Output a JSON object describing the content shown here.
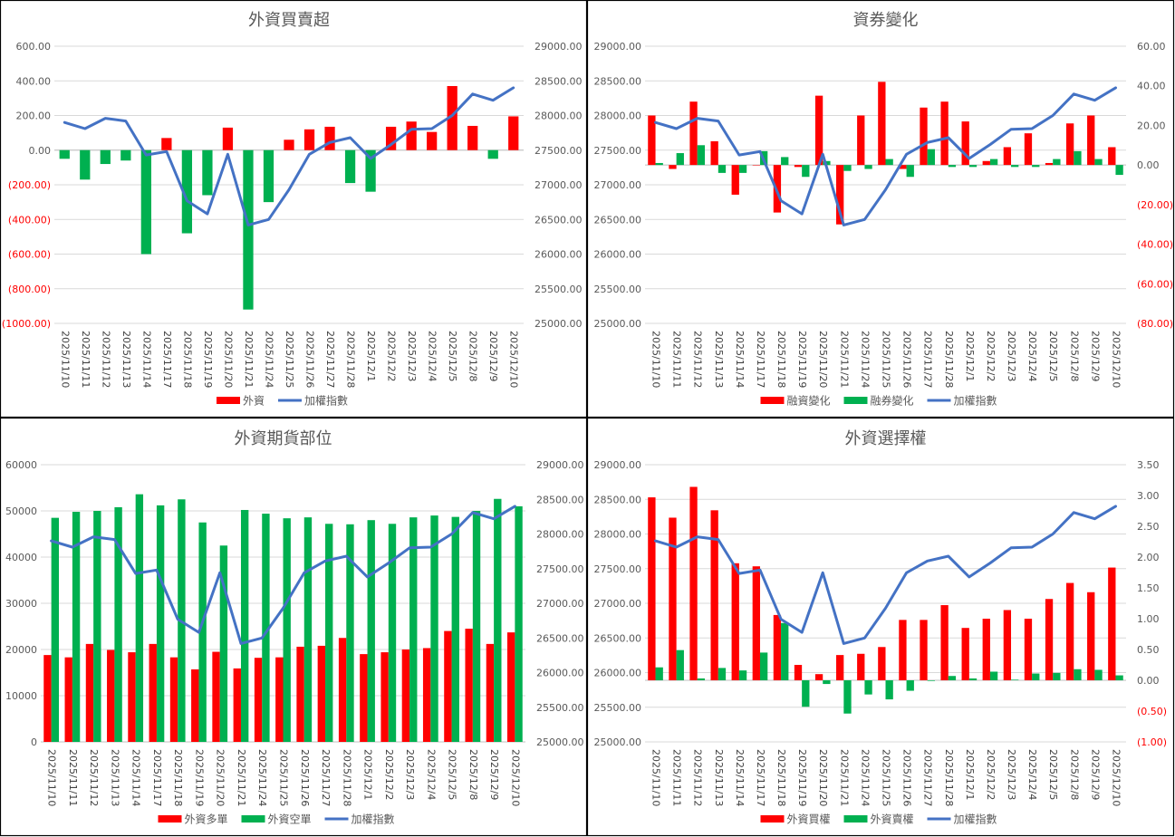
{
  "chart_data": [
    {
      "type": "bar+line",
      "title": "外資買賣超",
      "categories": [
        "2025/11/10",
        "2025/11/11",
        "2025/11/12",
        "2025/11/13",
        "2025/11/14",
        "2025/11/17",
        "2025/11/18",
        "2025/11/19",
        "2025/11/20",
        "2025/11/21",
        "2025/11/24",
        "2025/11/25",
        "2025/11/26",
        "2025/11/27",
        "2025/11/28",
        "2025/12/1",
        "2025/12/2",
        "2025/12/3",
        "2025/12/4",
        "2025/12/5",
        "2025/12/8",
        "2025/12/9",
        "2025/12/10"
      ],
      "y_left": {
        "min": -1000,
        "max": 600,
        "step": 200,
        "ticks": [
          "600.00",
          "400.00",
          "200.00",
          "0.00",
          "(200.00)",
          "(400.00)",
          "(600.00)",
          "(800.00)",
          "(1000.00)"
        ]
      },
      "y_right": {
        "min": 25000,
        "max": 29000,
        "step": 500,
        "ticks": [
          "29000.00",
          "28500.00",
          "28000.00",
          "27500.00",
          "27000.00",
          "26500.00",
          "26000.00",
          "25500.00",
          "25000.00"
        ]
      },
      "bar_mode": "sign",
      "series": [
        {
          "name": "外資",
          "type": "bar",
          "axis": "left",
          "pos_color": "#ff0000",
          "neg_color": "#00b050",
          "values": [
            -50,
            -170,
            -80,
            -60,
            -600,
            70,
            -480,
            -260,
            130,
            -920,
            -300,
            60,
            120,
            135,
            -190,
            -240,
            135,
            165,
            105,
            370,
            140,
            -50,
            195
          ]
        },
        {
          "name": "加權指數",
          "type": "line",
          "axis": "right",
          "color": "#4472c4",
          "values": [
            27900,
            27810,
            27960,
            27920,
            27430,
            27480,
            26770,
            26580,
            27440,
            26420,
            26500,
            26930,
            27440,
            27610,
            27680,
            27380,
            27580,
            27800,
            27810,
            28000,
            28310,
            28220,
            28400
          ]
        }
      ],
      "legend": [
        {
          "label": "外資",
          "color": "#ff0000",
          "kind": "bar"
        },
        {
          "label": "加權指數",
          "color": "#4472c4",
          "kind": "line"
        }
      ]
    },
    {
      "type": "bar+line",
      "title": "資券變化",
      "categories": [
        "2025/11/10",
        "2025/11/11",
        "2025/11/12",
        "2025/11/13",
        "2025/11/14",
        "2025/11/17",
        "2025/11/18",
        "2025/11/19",
        "2025/11/20",
        "2025/11/21",
        "2025/11/24",
        "2025/11/25",
        "2025/11/26",
        "2025/11/27",
        "2025/11/28",
        "2025/12/1",
        "2025/12/2",
        "2025/12/3",
        "2025/12/4",
        "2025/12/5",
        "2025/12/8",
        "2025/12/9",
        "2025/12/10"
      ],
      "y_left": {
        "min": 25000,
        "max": 29000,
        "step": 500,
        "ticks": [
          "29000.00",
          "28500.00",
          "28000.00",
          "27500.00",
          "27000.00",
          "26500.00",
          "26000.00",
          "25500.00",
          "25000.00"
        ]
      },
      "y_right": {
        "min": -80,
        "max": 60,
        "step": 20,
        "ticks": [
          "60.00",
          "40.00",
          "20.00",
          "0.00",
          "(20.00)",
          "(40.00)",
          "(60.00)",
          "(80.00)"
        ]
      },
      "bar_mode": "fixed",
      "series": [
        {
          "name": "融資變化",
          "type": "bar",
          "axis": "right",
          "color": "#ff0000",
          "values": [
            25,
            -2,
            32,
            12,
            -15,
            0,
            -24,
            -1,
            35,
            -30,
            25,
            42,
            -2,
            29,
            32,
            22,
            2,
            9,
            16,
            1,
            21,
            25,
            9
          ]
        },
        {
          "name": "融券變化",
          "type": "bar",
          "axis": "right",
          "color": "#00b050",
          "values": [
            1,
            6,
            10,
            -4,
            -4,
            7,
            4,
            -6,
            2,
            -3,
            -2,
            3,
            -6,
            8,
            -1,
            -1,
            3,
            -1,
            -1,
            3,
            7,
            3,
            -5
          ]
        },
        {
          "name": "加權指數",
          "type": "line",
          "axis": "left",
          "color": "#4472c4",
          "values": [
            27900,
            27810,
            27960,
            27920,
            27430,
            27480,
            26770,
            26580,
            27440,
            26420,
            26500,
            26930,
            27440,
            27610,
            27680,
            27380,
            27580,
            27800,
            27810,
            28000,
            28310,
            28220,
            28400
          ]
        }
      ],
      "legend": [
        {
          "label": "融資變化",
          "color": "#ff0000",
          "kind": "bar"
        },
        {
          "label": "融券變化",
          "color": "#00b050",
          "kind": "bar"
        },
        {
          "label": "加權指數",
          "color": "#4472c4",
          "kind": "line"
        }
      ]
    },
    {
      "type": "bar+line",
      "title": "外資期貨部位",
      "categories": [
        "2025/11/10",
        "2025/11/11",
        "2025/11/12",
        "2025/11/13",
        "2025/11/14",
        "2025/11/17",
        "2025/11/18",
        "2025/11/19",
        "2025/11/20",
        "2025/11/21",
        "2025/11/24",
        "2025/11/25",
        "2025/11/26",
        "2025/11/27",
        "2025/11/28",
        "2025/12/1",
        "2025/12/2",
        "2025/12/3",
        "2025/12/4",
        "2025/12/5",
        "2025/12/8",
        "2025/12/9",
        "2025/12/10"
      ],
      "y_left": {
        "min": 0,
        "max": 60000,
        "step": 10000,
        "ticks": [
          "60000",
          "50000",
          "40000",
          "30000",
          "20000",
          "10000",
          "0"
        ]
      },
      "y_right": {
        "min": 25000,
        "max": 29000,
        "step": 500,
        "ticks": [
          "29000.00",
          "28500.00",
          "28000.00",
          "27500.00",
          "27000.00",
          "26500.00",
          "26000.00",
          "25500.00",
          "25000.00"
        ]
      },
      "bar_mode": "fixed",
      "series": [
        {
          "name": "外資多單",
          "type": "bar",
          "axis": "left",
          "color": "#ff0000",
          "values": [
            18800,
            18300,
            21200,
            19900,
            19400,
            21200,
            18300,
            15700,
            19500,
            15900,
            18200,
            18300,
            20600,
            20800,
            22500,
            19000,
            19400,
            20000,
            20300,
            24000,
            24500,
            21200,
            23700
          ]
        },
        {
          "name": "外資空單",
          "type": "bar",
          "axis": "left",
          "color": "#00b050",
          "values": [
            48500,
            49800,
            50000,
            50800,
            53600,
            51200,
            52500,
            47500,
            42500,
            50200,
            49400,
            48400,
            48600,
            47200,
            47100,
            48000,
            47200,
            48600,
            49000,
            48700,
            50000,
            52600,
            51000
          ]
        },
        {
          "name": "加權指數",
          "type": "line",
          "axis": "right",
          "color": "#4472c4",
          "values": [
            27900,
            27810,
            27960,
            27920,
            27430,
            27480,
            26770,
            26580,
            27440,
            26420,
            26500,
            26930,
            27440,
            27610,
            27680,
            27380,
            27580,
            27800,
            27810,
            28000,
            28310,
            28220,
            28400
          ]
        }
      ],
      "legend": [
        {
          "label": "外資多單",
          "color": "#ff0000",
          "kind": "bar"
        },
        {
          "label": "外資空單",
          "color": "#00b050",
          "kind": "bar"
        },
        {
          "label": "加權指數",
          "color": "#4472c4",
          "kind": "line"
        }
      ]
    },
    {
      "type": "bar+line",
      "title": "外資選擇權",
      "categories": [
        "2025/11/10",
        "2025/11/11",
        "2025/11/12",
        "2025/11/13",
        "2025/11/14",
        "2025/11/17",
        "2025/11/18",
        "2025/11/19",
        "2025/11/20",
        "2025/11/21",
        "2025/11/24",
        "2025/11/25",
        "2025/11/26",
        "2025/11/27",
        "2025/11/28",
        "2025/12/1",
        "2025/12/2",
        "2025/12/3",
        "2025/12/4",
        "2025/12/5",
        "2025/12/8",
        "2025/12/9",
        "2025/12/10"
      ],
      "y_left": {
        "min": 25000,
        "max": 29000,
        "step": 500,
        "ticks": [
          "29000.00",
          "28500.00",
          "28000.00",
          "27500.00",
          "27000.00",
          "26500.00",
          "26000.00",
          "25500.00",
          "25000.00"
        ]
      },
      "y_right": {
        "min": -1,
        "max": 3.5,
        "step": 0.5,
        "ticks": [
          "3.50",
          "3.00",
          "2.50",
          "2.00",
          "1.50",
          "1.00",
          "0.50",
          "0.00",
          "(0.50)",
          "(1.00)"
        ]
      },
      "bar_mode": "fixed",
      "series": [
        {
          "name": "外資買權",
          "type": "bar",
          "axis": "right",
          "color": "#ff0000",
          "values": [
            2.97,
            2.64,
            3.14,
            2.76,
            1.9,
            1.85,
            1.06,
            0.25,
            0.1,
            0.41,
            0.43,
            0.54,
            0.98,
            0.98,
            1.22,
            0.85,
            1.0,
            1.14,
            1.0,
            1.32,
            1.58,
            1.43,
            1.83
          ]
        },
        {
          "name": "外資賣權",
          "type": "bar",
          "axis": "right",
          "color": "#00b050",
          "values": [
            0.21,
            0.49,
            0.03,
            0.2,
            0.16,
            0.45,
            0.93,
            -0.43,
            -0.06,
            -0.54,
            -0.23,
            -0.31,
            -0.17,
            -0.01,
            0.07,
            0.03,
            0.14,
            0.01,
            0.11,
            0.12,
            0.18,
            0.17,
            0.08
          ]
        },
        {
          "name": "加權指數",
          "type": "line",
          "axis": "left",
          "color": "#4472c4",
          "values": [
            27900,
            27810,
            27960,
            27920,
            27430,
            27480,
            26770,
            26580,
            27440,
            26420,
            26500,
            26930,
            27440,
            27610,
            27680,
            27380,
            27580,
            27800,
            27810,
            28000,
            28310,
            28220,
            28400
          ]
        }
      ],
      "legend": [
        {
          "label": "外資買權",
          "color": "#ff0000",
          "kind": "bar"
        },
        {
          "label": "外資賣權",
          "color": "#00b050",
          "kind": "bar"
        },
        {
          "label": "加權指數",
          "color": "#4472c4",
          "kind": "line"
        }
      ]
    }
  ]
}
